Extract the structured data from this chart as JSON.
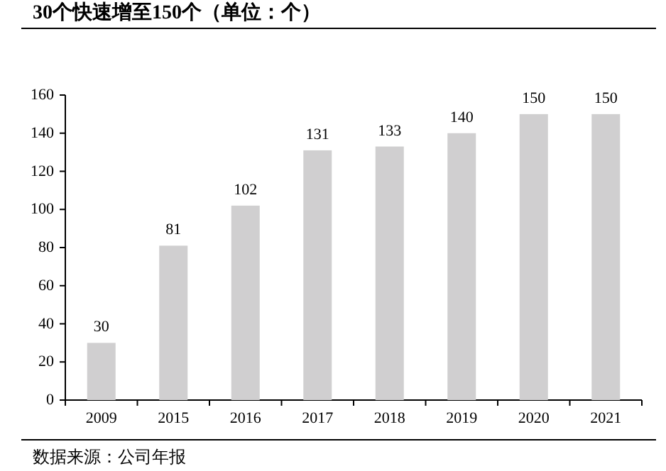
{
  "chart_data": {
    "type": "bar",
    "title": "30个快速增至150个（单位：个）",
    "categories": [
      "2009",
      "2015",
      "2016",
      "2017",
      "2018",
      "2019",
      "2020",
      "2021"
    ],
    "values": [
      30,
      81,
      102,
      131,
      133,
      140,
      150,
      150
    ],
    "color": "#d0cfd0",
    "ylim": [
      0,
      160
    ],
    "yticks": [
      0,
      20,
      40,
      60,
      80,
      100,
      120,
      140,
      160
    ],
    "data_labels": true,
    "grid": false,
    "annotations": [
      "数据来源：公司年报"
    ]
  }
}
